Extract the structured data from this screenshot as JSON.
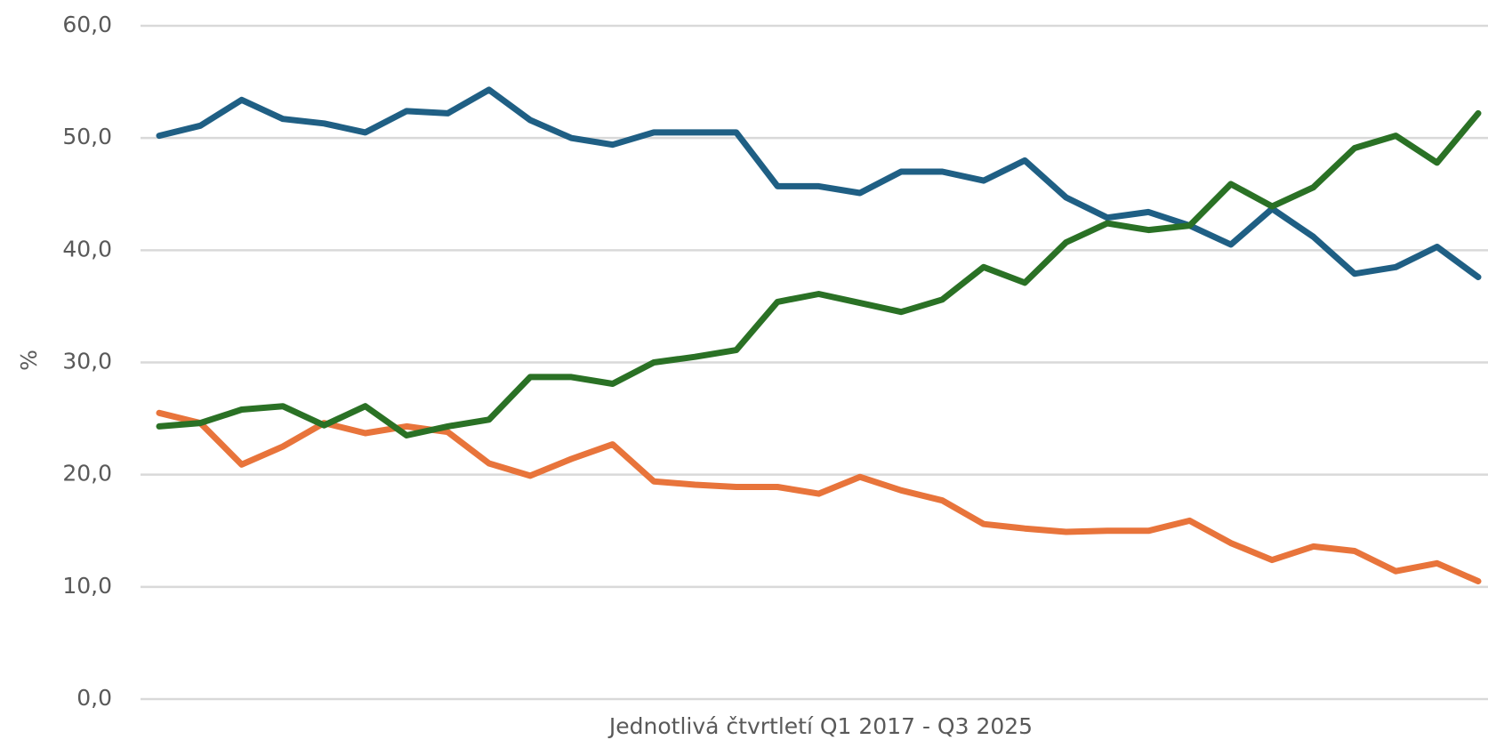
{
  "chart_data": {
    "type": "line",
    "y_label": "%",
    "x_label": "Jednotlivá čtvrtletí Q1 2017 - Q3 2025",
    "ylim": [
      0,
      60
    ],
    "yticks": [
      {
        "value": 0,
        "label": "0,0"
      },
      {
        "value": 10,
        "label": "10,0"
      },
      {
        "value": 20,
        "label": "20,0"
      },
      {
        "value": 30,
        "label": "30,0"
      },
      {
        "value": 40,
        "label": "40,0"
      },
      {
        "value": 50,
        "label": "50,0"
      },
      {
        "value": 60,
        "label": "60,0"
      }
    ],
    "grid": true,
    "series": [
      {
        "color": "#1f5f84",
        "values": [
          50.2,
          51.1,
          53.4,
          51.7,
          51.3,
          50.5,
          52.4,
          52.2,
          54.3,
          51.6,
          50.0,
          49.4,
          50.5,
          50.5,
          50.5,
          45.7,
          45.7,
          45.1,
          47.0,
          47.0,
          46.2,
          48.0,
          44.7,
          42.9,
          43.4,
          42.2,
          40.5,
          43.7,
          41.2,
          37.9,
          38.5,
          40.3,
          37.6
        ]
      },
      {
        "color": "#e8743b",
        "values": [
          25.5,
          24.6,
          20.9,
          22.5,
          24.6,
          23.7,
          24.3,
          23.8,
          21.0,
          19.9,
          21.4,
          22.7,
          19.4,
          19.1,
          18.9,
          18.9,
          18.3,
          19.8,
          18.6,
          17.7,
          15.6,
          15.2,
          14.9,
          15.0,
          15.0,
          15.9,
          13.9,
          12.4,
          13.6,
          13.2,
          11.4,
          12.1,
          10.5
        ]
      },
      {
        "color": "#2a7125",
        "values": [
          24.3,
          24.6,
          25.8,
          26.1,
          24.4,
          26.1,
          23.5,
          24.3,
          24.9,
          28.7,
          28.7,
          28.1,
          30.0,
          30.5,
          31.1,
          35.4,
          36.1,
          35.3,
          34.5,
          35.6,
          38.5,
          37.1,
          40.7,
          42.4,
          41.8,
          42.2,
          45.9,
          43.9,
          45.6,
          49.1,
          50.2,
          47.8,
          52.2
        ]
      }
    ]
  }
}
